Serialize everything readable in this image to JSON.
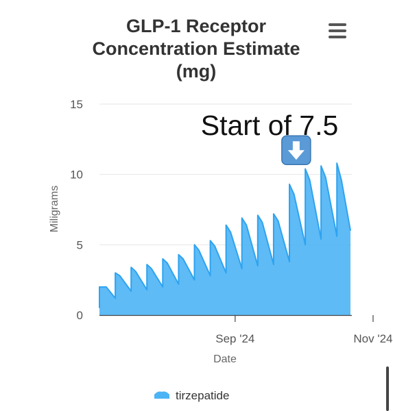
{
  "chart_data": {
    "type": "area",
    "title": "GLP-1 Receptor Concentration Estimate (mg)",
    "xlabel": "Date",
    "ylabel": "Miligrams",
    "ylim": [
      0,
      15
    ],
    "yticks": [
      0,
      5,
      10,
      15
    ],
    "xticks": [
      {
        "date": "2024-09-01",
        "label": "Sep '24"
      },
      {
        "date": "2024-11-01",
        "label": "Nov '24"
      }
    ],
    "grid": true,
    "legend_position": "bottom",
    "color": "#4cb4f5",
    "series": [
      {
        "name": "tirzepatide",
        "points": [
          [
            "2024-07-03",
            0.5
          ],
          [
            "2024-07-03",
            2.0
          ],
          [
            "2024-07-06",
            2.0
          ],
          [
            "2024-07-10",
            1.2
          ],
          [
            "2024-07-10",
            3.0
          ],
          [
            "2024-07-12",
            2.8
          ],
          [
            "2024-07-17",
            1.7
          ],
          [
            "2024-07-17",
            3.4
          ],
          [
            "2024-07-19",
            3.1
          ],
          [
            "2024-07-24",
            1.8
          ],
          [
            "2024-07-24",
            3.6
          ],
          [
            "2024-07-26",
            3.3
          ],
          [
            "2024-07-31",
            2.0
          ],
          [
            "2024-07-31",
            4.0
          ],
          [
            "2024-08-02",
            3.7
          ],
          [
            "2024-08-07",
            2.2
          ],
          [
            "2024-08-07",
            4.3
          ],
          [
            "2024-08-09",
            4.0
          ],
          [
            "2024-08-14",
            2.5
          ],
          [
            "2024-08-14",
            5.0
          ],
          [
            "2024-08-16",
            4.6
          ],
          [
            "2024-08-21",
            2.8
          ],
          [
            "2024-08-21",
            5.3
          ],
          [
            "2024-08-23",
            4.9
          ],
          [
            "2024-08-28",
            3.0
          ],
          [
            "2024-08-28",
            6.4
          ],
          [
            "2024-08-30",
            5.9
          ],
          [
            "2024-09-04",
            3.3
          ],
          [
            "2024-09-04",
            6.9
          ],
          [
            "2024-09-06",
            6.4
          ],
          [
            "2024-09-11",
            3.5
          ],
          [
            "2024-09-11",
            7.1
          ],
          [
            "2024-09-13",
            6.6
          ],
          [
            "2024-09-18",
            3.6
          ],
          [
            "2024-09-18",
            7.2
          ],
          [
            "2024-09-20",
            6.7
          ],
          [
            "2024-09-25",
            3.8
          ],
          [
            "2024-09-25",
            9.3
          ],
          [
            "2024-09-27",
            8.6
          ],
          [
            "2024-10-02",
            5.0
          ],
          [
            "2024-10-02",
            10.4
          ],
          [
            "2024-10-04",
            9.6
          ],
          [
            "2024-10-09",
            5.4
          ],
          [
            "2024-10-09",
            10.6
          ],
          [
            "2024-10-11",
            9.8
          ],
          [
            "2024-10-16",
            5.6
          ],
          [
            "2024-10-16",
            10.8
          ],
          [
            "2024-10-18",
            9.6
          ],
          [
            "2024-10-22",
            6.0
          ]
        ]
      }
    ],
    "annotation": {
      "text": "Start of 7.5",
      "icon": "down-arrow-emoji",
      "icon_color": "#5a9ad6",
      "at": {
        "date": "2024-09-28",
        "value": 10.7
      }
    }
  },
  "chart_menu": {
    "icon": "hamburger-menu-icon"
  },
  "legend": [
    {
      "label": "tirzepatide",
      "color": "#4cb4f5",
      "icon": "legend-area-icon"
    }
  ]
}
